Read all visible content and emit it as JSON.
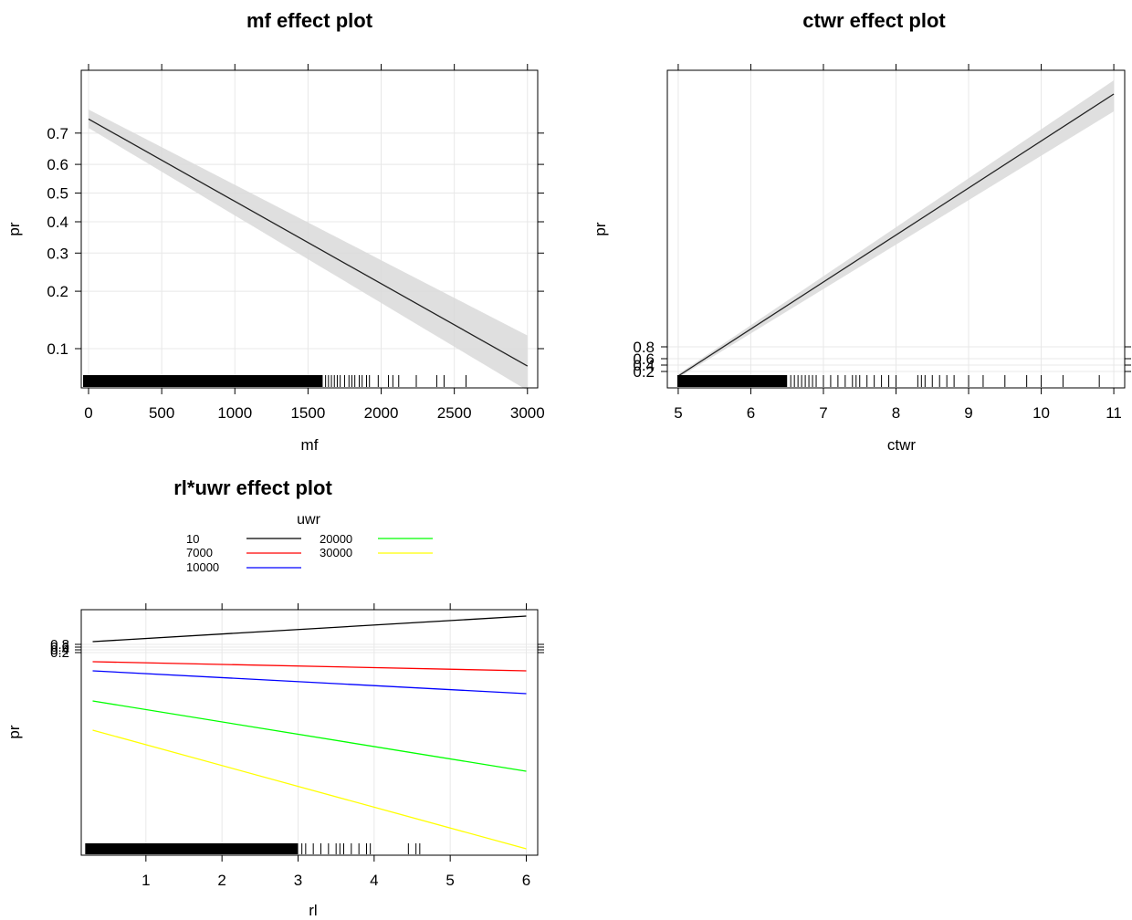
{
  "chart_data": [
    {
      "type": "line",
      "title": "mf effect plot",
      "xlabel": "mf",
      "ylabel": "pr",
      "xlim": [
        -50,
        3070
      ],
      "ylim": [
        0.06,
        0.85
      ],
      "y_scale": "logit",
      "x_ticks": [
        0,
        500,
        1000,
        1500,
        2000,
        2500,
        3000
      ],
      "y_ticks": [
        0.1,
        0.2,
        0.3,
        0.4,
        0.5,
        0.6,
        0.7
      ],
      "grid": true,
      "confidence_band": true,
      "series": [
        {
          "x": [
            0,
            3000
          ],
          "y": [
            0.74,
            0.08
          ],
          "lower": [
            0.715,
            0.058
          ],
          "upper": [
            0.765,
            0.118
          ]
        }
      ],
      "rug_dense_range": [
        0,
        1600
      ],
      "rug": [
        1620,
        1640,
        1660,
        1680,
        1700,
        1720,
        1750,
        1780,
        1800,
        1820,
        1850,
        1870,
        1900,
        1920,
        1980,
        2050,
        2080,
        2120,
        2240,
        2380,
        2430,
        2580
      ]
    },
    {
      "type": "line",
      "title": "ctwr effect plot",
      "xlabel": "ctwr",
      "ylabel": "pr",
      "xlim": [
        4.85,
        11.15
      ],
      "y_scale": "logit",
      "x_ticks": [
        5,
        6,
        7,
        8,
        9,
        10,
        11
      ],
      "y_ticks": [
        0.2,
        0.4,
        0.6,
        0.8
      ],
      "grid": true,
      "confidence_band": true,
      "series": [
        {
          "x": [
            5,
            11
          ],
          "y_screen_note": ""
        }
      ],
      "rug_dense_range": [
        5.05,
        6.5
      ],
      "rug": [
        6.55,
        6.6,
        6.65,
        6.7,
        6.75,
        6.8,
        6.85,
        6.9,
        7.0,
        7.1,
        7.2,
        7.3,
        7.4,
        7.45,
        7.5,
        7.6,
        7.7,
        7.8,
        7.9,
        8.0,
        8.3,
        8.35,
        8.4,
        8.5,
        8.6,
        8.7,
        8.8,
        9.0,
        9.2,
        9.5,
        9.8,
        10.0,
        10.3,
        10.8
      ]
    },
    {
      "type": "line",
      "title": "rl*uwr effect plot",
      "xlabel": "rl",
      "ylabel": "pr",
      "xlim": [
        0.15,
        6.15
      ],
      "y_scale": "logit",
      "x_ticks": [
        1,
        2,
        3,
        4,
        5,
        6
      ],
      "y_ticks": [
        0.2,
        0.4,
        0.6,
        0.8
      ],
      "grid": true,
      "legend_title": "uwr",
      "legend_placement": "top",
      "series": [
        {
          "name": "10",
          "color": "#000000",
          "x": [
            0.3,
            6
          ]
        },
        {
          "name": "7000",
          "color": "#ff0000",
          "x": [
            0.3,
            6
          ]
        },
        {
          "name": "10000",
          "color": "#0000ff",
          "x": [
            0.3,
            6
          ]
        },
        {
          "name": "20000",
          "color": "#00ff00",
          "x": [
            0.3,
            6
          ]
        },
        {
          "name": "30000",
          "color": "#ffff00",
          "x": [
            0.3,
            6
          ]
        }
      ],
      "rug_dense_range": [
        0.25,
        3.0
      ],
      "rug": [
        3.05,
        3.1,
        3.2,
        3.3,
        3.4,
        3.5,
        3.55,
        3.6,
        3.7,
        3.8,
        3.9,
        3.95,
        4.45,
        4.55,
        4.6
      ]
    }
  ]
}
